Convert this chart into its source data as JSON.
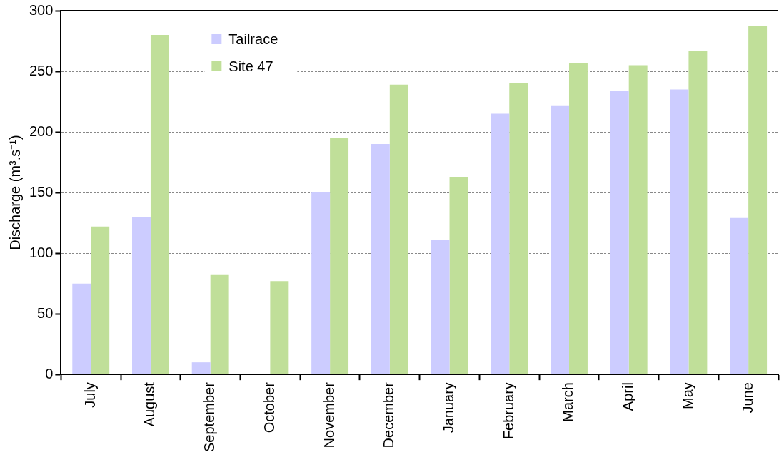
{
  "chart_data": {
    "type": "bar",
    "ylabel": "Discharge (m³.s⁻¹)",
    "categories": [
      "July",
      "August",
      "September",
      "October",
      "November",
      "December",
      "January",
      "February",
      "March",
      "April",
      "May",
      "June"
    ],
    "series": [
      {
        "name": "Tailrace",
        "color": "#ccccff",
        "values": [
          75,
          130,
          10,
          null,
          150,
          190,
          111,
          215,
          222,
          234,
          235,
          129
        ]
      },
      {
        "name": "Site 47",
        "color": "#c0df99",
        "values": [
          122,
          280,
          82,
          77,
          195,
          239,
          163,
          240,
          257,
          255,
          267,
          287
        ]
      }
    ],
    "ylim": [
      0,
      300
    ],
    "yticks": [
      0,
      50,
      100,
      150,
      200,
      250,
      300
    ],
    "grid": "y",
    "legend": "top"
  }
}
